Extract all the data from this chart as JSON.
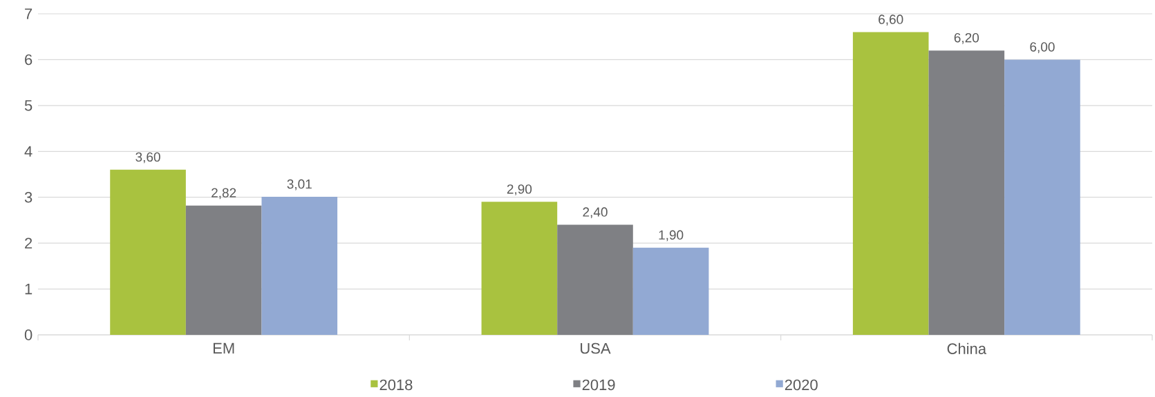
{
  "chart_data": {
    "type": "bar",
    "categories": [
      "EM",
      "USA",
      "China"
    ],
    "series": [
      {
        "name": "2018",
        "color": "#a9c23f",
        "values": [
          3.6,
          2.9,
          6.6
        ],
        "value_labels": [
          "3,60",
          "2,90",
          "6,60"
        ]
      },
      {
        "name": "2019",
        "color": "#7f8084",
        "values": [
          2.82,
          2.4,
          6.2
        ],
        "value_labels": [
          "2,82",
          "2,40",
          "6,20"
        ]
      },
      {
        "name": "2020",
        "color": "#92a9d3",
        "values": [
          3.01,
          1.9,
          6.0
        ],
        "value_labels": [
          "3,01",
          "1,90",
          "6,00"
        ]
      }
    ],
    "ylim": [
      0,
      7
    ],
    "yticks": [
      0,
      1,
      2,
      3,
      4,
      5,
      6,
      7
    ],
    "grid": "y",
    "legend": "bottom"
  }
}
